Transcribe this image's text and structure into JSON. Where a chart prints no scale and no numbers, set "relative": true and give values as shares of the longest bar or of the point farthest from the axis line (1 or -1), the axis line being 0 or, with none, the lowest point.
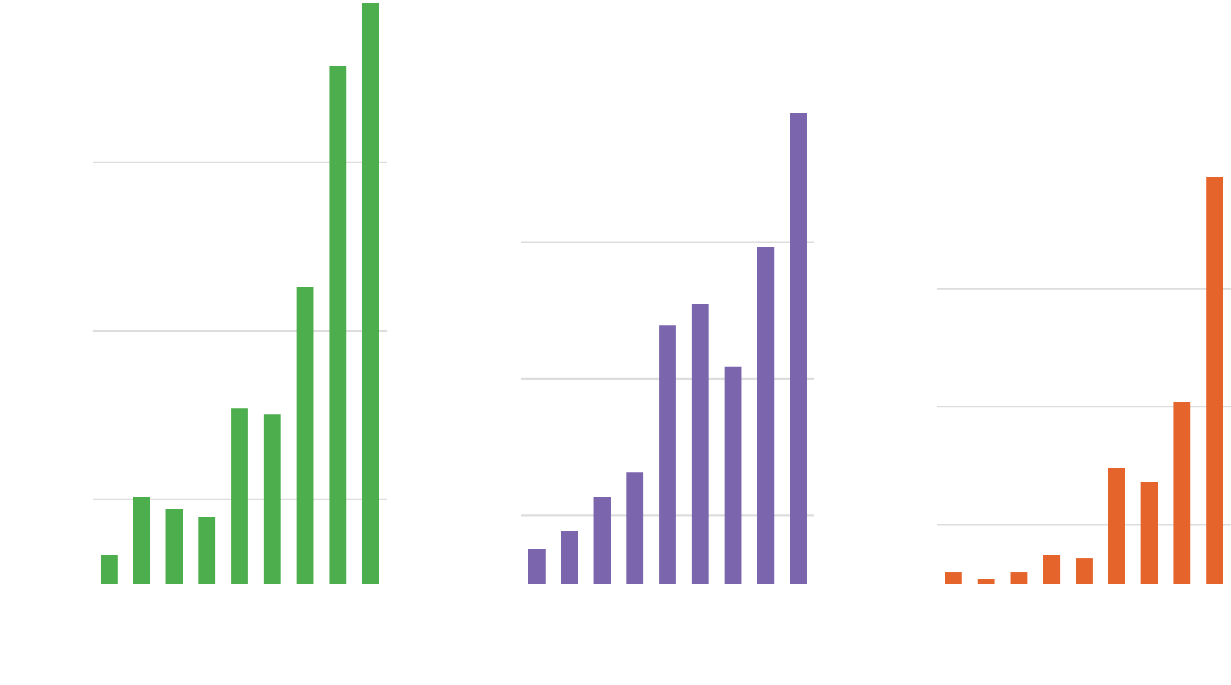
{
  "chart_data": [
    {
      "type": "bar",
      "relative": true,
      "grid": "y",
      "categories": [
        null,
        null,
        null,
        null,
        null,
        null,
        null,
        null,
        null
      ],
      "color": "#4cae4c",
      "values": [
        0.049,
        0.15,
        0.128,
        0.115,
        0.302,
        0.292,
        0.511,
        0.892,
        1
      ]
    },
    {
      "type": "bar",
      "relative": true,
      "grid": "y",
      "categories": [
        null,
        null,
        null,
        null,
        null,
        null,
        null,
        null,
        null
      ],
      "color": "#7b66ae",
      "values": [
        0.073,
        0.112,
        0.185,
        0.236,
        0.548,
        0.594,
        0.461,
        0.715,
        1
      ]
    },
    {
      "type": "bar",
      "relative": true,
      "grid": "y",
      "categories": [
        null,
        null,
        null,
        null,
        null,
        null,
        null,
        null,
        null
      ],
      "color": "#e5642b",
      "values": [
        0.028,
        0.011,
        0.028,
        0.07,
        0.063,
        0.284,
        0.249,
        0.446,
        1
      ]
    }
  ]
}
